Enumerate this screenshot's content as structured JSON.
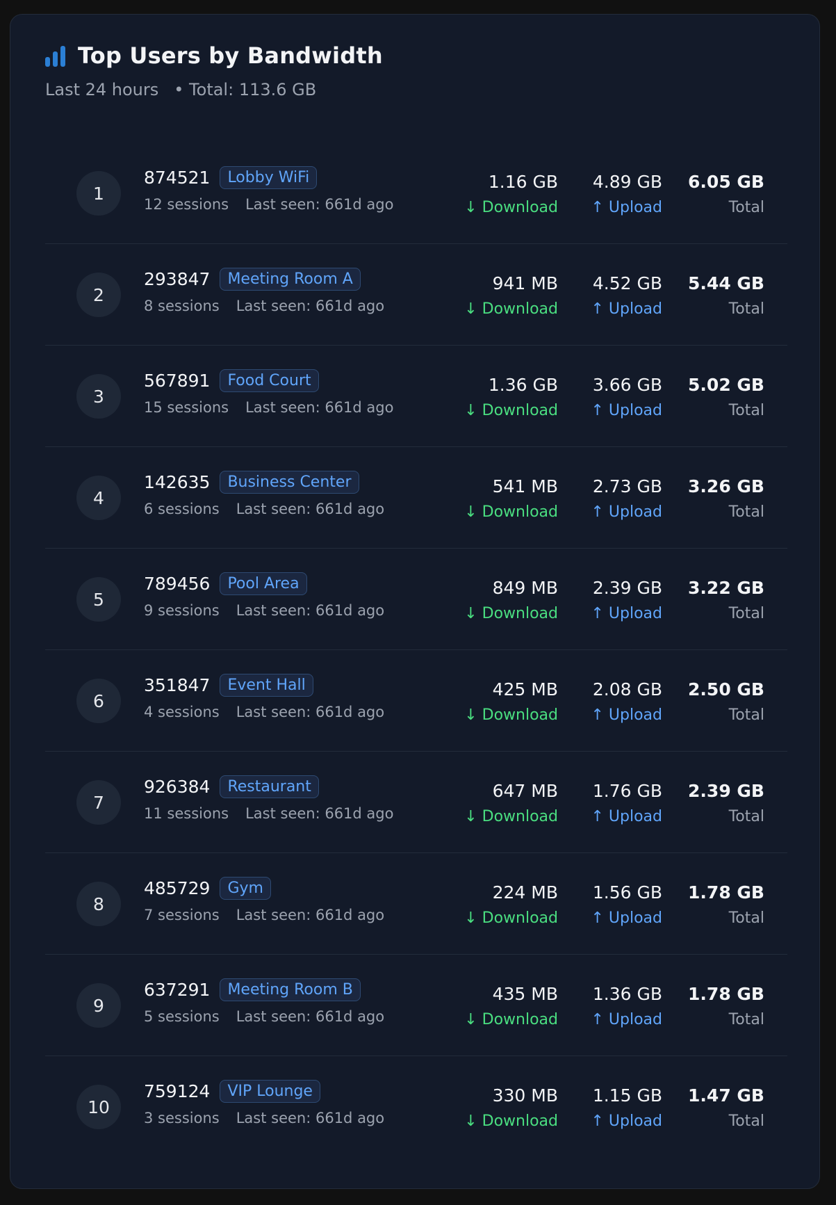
{
  "header": {
    "title": "Top Users by Bandwidth",
    "period": "Last 24 hours",
    "total": "• Total: 113.6 GB",
    "icon": "bar-chart-icon",
    "accent": "#2b7fd4"
  },
  "labels": {
    "download": "↓ Download",
    "upload": "↑ Upload",
    "total": "Total"
  },
  "colors": {
    "download": "#4ade80",
    "upload": "#60a5fa",
    "badge": "#60a5fa"
  },
  "users": [
    {
      "rank": "1",
      "id": "874521",
      "location": "Lobby WiFi",
      "sessions": "12 sessions",
      "last_seen": "Last seen: 661d ago",
      "download": "1.16 GB",
      "upload": "4.89 GB",
      "total": "6.05 GB"
    },
    {
      "rank": "2",
      "id": "293847",
      "location": "Meeting Room A",
      "sessions": "8 sessions",
      "last_seen": "Last seen: 661d ago",
      "download": "941 MB",
      "upload": "4.52 GB",
      "total": "5.44 GB"
    },
    {
      "rank": "3",
      "id": "567891",
      "location": "Food Court",
      "sessions": "15 sessions",
      "last_seen": "Last seen: 661d ago",
      "download": "1.36 GB",
      "upload": "3.66 GB",
      "total": "5.02 GB"
    },
    {
      "rank": "4",
      "id": "142635",
      "location": "Business Center",
      "sessions": "6 sessions",
      "last_seen": "Last seen: 661d ago",
      "download": "541 MB",
      "upload": "2.73 GB",
      "total": "3.26 GB"
    },
    {
      "rank": "5",
      "id": "789456",
      "location": "Pool Area",
      "sessions": "9 sessions",
      "last_seen": "Last seen: 661d ago",
      "download": "849 MB",
      "upload": "2.39 GB",
      "total": "3.22 GB"
    },
    {
      "rank": "6",
      "id": "351847",
      "location": "Event Hall",
      "sessions": "4 sessions",
      "last_seen": "Last seen: 661d ago",
      "download": "425 MB",
      "upload": "2.08 GB",
      "total": "2.50 GB"
    },
    {
      "rank": "7",
      "id": "926384",
      "location": "Restaurant",
      "sessions": "11 sessions",
      "last_seen": "Last seen: 661d ago",
      "download": "647 MB",
      "upload": "1.76 GB",
      "total": "2.39 GB"
    },
    {
      "rank": "8",
      "id": "485729",
      "location": "Gym",
      "sessions": "7 sessions",
      "last_seen": "Last seen: 661d ago",
      "download": "224 MB",
      "upload": "1.56 GB",
      "total": "1.78 GB"
    },
    {
      "rank": "9",
      "id": "637291",
      "location": "Meeting Room B",
      "sessions": "5 sessions",
      "last_seen": "Last seen: 661d ago",
      "download": "435 MB",
      "upload": "1.36 GB",
      "total": "1.78 GB"
    },
    {
      "rank": "10",
      "id": "759124",
      "location": "VIP Lounge",
      "sessions": "3 sessions",
      "last_seen": "Last seen: 661d ago",
      "download": "330 MB",
      "upload": "1.15 GB",
      "total": "1.47 GB"
    }
  ]
}
